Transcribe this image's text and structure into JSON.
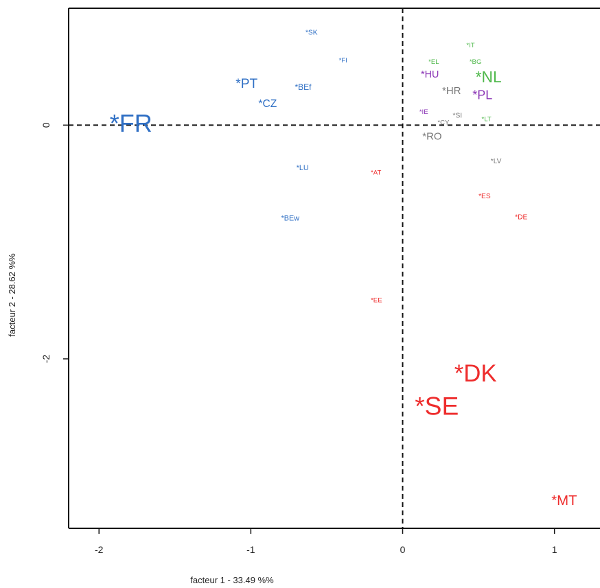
{
  "chart_data": {
    "type": "scatter",
    "title": "",
    "xlabel": "facteur  1  - 33.49 %%",
    "ylabel": "facteur  2  - 28.62 %%",
    "xlim": [
      -2.2,
      1.3
    ],
    "ylim": [
      -3.45,
      1.0
    ],
    "x_ticks": [
      -2,
      -1,
      0,
      1
    ],
    "y_ticks": [
      -2,
      0
    ],
    "x_tick_labels": [
      "-2",
      "-1",
      "0",
      "1"
    ],
    "y_tick_labels": [
      "-2",
      "0"
    ],
    "reference_lines": {
      "x": 0,
      "y": 0,
      "style": "dashed"
    },
    "grid": false,
    "groups": {
      "blue": "#2f6fc4",
      "red": "#ee2c2c",
      "green": "#4fb84b",
      "purple": "#8a34b5",
      "gray": "#777777"
    },
    "points": [
      {
        "label": "*FR",
        "x": -1.93,
        "y": 0.0,
        "group": "blue",
        "size": 3.0
      },
      {
        "label": "*PT",
        "x": -1.1,
        "y": 0.35,
        "group": "blue",
        "size": 1.6
      },
      {
        "label": "*CZ",
        "x": -0.95,
        "y": 0.18,
        "group": "blue",
        "size": 1.3
      },
      {
        "label": "*BEf",
        "x": -0.71,
        "y": 0.32,
        "group": "blue",
        "size": 1.0
      },
      {
        "label": "*SK",
        "x": -0.64,
        "y": 0.79,
        "group": "blue",
        "size": 0.85
      },
      {
        "label": "*FI",
        "x": -0.42,
        "y": 0.55,
        "group": "blue",
        "size": 0.8
      },
      {
        "label": "*LU",
        "x": -0.7,
        "y": -0.37,
        "group": "blue",
        "size": 0.9
      },
      {
        "label": "*BEw",
        "x": -0.8,
        "y": -0.8,
        "group": "blue",
        "size": 0.9
      },
      {
        "label": "*AT",
        "x": -0.21,
        "y": -0.41,
        "group": "red",
        "size": 0.8
      },
      {
        "label": "*EE",
        "x": -0.21,
        "y": -1.5,
        "group": "red",
        "size": 0.8
      },
      {
        "label": "*ES",
        "x": 0.5,
        "y": -0.61,
        "group": "red",
        "size": 0.85
      },
      {
        "label": "*DE",
        "x": 0.74,
        "y": -0.79,
        "group": "red",
        "size": 0.85
      },
      {
        "label": "*DK",
        "x": 0.34,
        "y": -2.14,
        "group": "red",
        "size": 2.9
      },
      {
        "label": "*SE",
        "x": 0.08,
        "y": -2.42,
        "group": "red",
        "size": 3.1
      },
      {
        "label": "*MT",
        "x": 0.98,
        "y": -3.22,
        "group": "red",
        "size": 1.7
      },
      {
        "label": "*IT",
        "x": 0.42,
        "y": 0.68,
        "group": "green",
        "size": 0.8
      },
      {
        "label": "*EL",
        "x": 0.17,
        "y": 0.54,
        "group": "green",
        "size": 0.8
      },
      {
        "label": "*BG",
        "x": 0.44,
        "y": 0.54,
        "group": "green",
        "size": 0.8
      },
      {
        "label": "*NL",
        "x": 0.48,
        "y": 0.4,
        "group": "green",
        "size": 1.9
      },
      {
        "label": "*LT",
        "x": 0.52,
        "y": 0.05,
        "group": "green",
        "size": 0.8
      },
      {
        "label": "*HU",
        "x": 0.12,
        "y": 0.43,
        "group": "purple",
        "size": 1.2
      },
      {
        "label": "*PL",
        "x": 0.46,
        "y": 0.25,
        "group": "purple",
        "size": 1.5
      },
      {
        "label": "*IE",
        "x": 0.11,
        "y": 0.11,
        "group": "purple",
        "size": 0.8
      },
      {
        "label": "*HR",
        "x": 0.26,
        "y": 0.29,
        "group": "gray",
        "size": 1.25
      },
      {
        "label": "*SI",
        "x": 0.33,
        "y": 0.08,
        "group": "gray",
        "size": 0.85
      },
      {
        "label": "*CY",
        "x": 0.23,
        "y": 0.02,
        "group": "gray",
        "size": 0.8
      },
      {
        "label": "*RO",
        "x": 0.13,
        "y": -0.1,
        "group": "gray",
        "size": 1.25
      },
      {
        "label": "*LV",
        "x": 0.58,
        "y": -0.31,
        "group": "gray",
        "size": 0.85
      }
    ]
  }
}
